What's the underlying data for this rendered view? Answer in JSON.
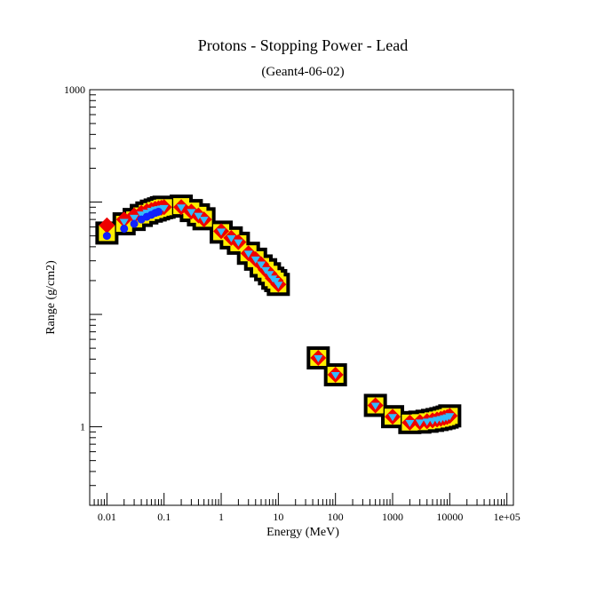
{
  "chart_data": {
    "type": "scatter",
    "title": "Protons - Stopping Power - Lead",
    "subtitle": "(Geant4-06-02)",
    "xlabel": "Energy (MeV)",
    "ylabel": "Range (g/cm2)",
    "x_scale": "log",
    "y_scale": "log",
    "xlim": [
      0.005,
      130000
    ],
    "ylim": [
      0.2,
      1000
    ],
    "grid": false,
    "x_ticks": [
      {
        "value": 0.01,
        "label": "0.01"
      },
      {
        "value": 0.1,
        "label": "0.1"
      },
      {
        "value": 1,
        "label": "1"
      },
      {
        "value": 10,
        "label": "10"
      },
      {
        "value": 100,
        "label": "100"
      },
      {
        "value": 1000,
        "label": "1000"
      },
      {
        "value": 10000,
        "label": "10000"
      },
      {
        "value": 100000,
        "label": "1e+05"
      }
    ],
    "y_ticks": [
      {
        "value": 1,
        "label": "1"
      },
      {
        "value": 1000,
        "label": "1000"
      }
    ],
    "series": [
      {
        "marker": "black-square",
        "color": "#000000",
        "x": [
          0.01,
          0.02,
          0.03,
          0.04,
          0.05,
          0.06,
          0.07,
          0.08,
          0.09,
          0.1,
          0.2,
          0.3,
          0.4,
          0.5,
          1,
          1.5,
          2,
          3,
          4,
          5,
          6,
          7,
          8,
          9,
          10,
          50,
          100,
          500,
          1000,
          2000,
          3000,
          4000,
          5000,
          6000,
          7000,
          8000,
          9000,
          10000
        ],
        "y": [
          53,
          64,
          70,
          76,
          80,
          83,
          85,
          87,
          89,
          90,
          92,
          84,
          77,
          71,
          54,
          48,
          43,
          35,
          31,
          27,
          25,
          23,
          21,
          20,
          18.5,
          4.1,
          2.9,
          1.55,
          1.23,
          1.09,
          1.1,
          1.12,
          1.14,
          1.16,
          1.18,
          1.2,
          1.22,
          1.25
        ]
      },
      {
        "marker": "yellow-square",
        "color": "#ffee00",
        "x": [
          0.01,
          0.02,
          0.03,
          0.04,
          0.05,
          0.06,
          0.07,
          0.08,
          0.09,
          0.1,
          0.2,
          0.3,
          0.4,
          0.5,
          1,
          1.5,
          2,
          3,
          4,
          5,
          6,
          7,
          8,
          9,
          10,
          50,
          100,
          500,
          1000,
          2000,
          3000,
          4000,
          5000,
          6000,
          7000,
          8000,
          9000,
          10000
        ],
        "y": [
          53,
          64,
          70,
          76,
          80,
          83,
          85,
          87,
          89,
          90,
          92,
          84,
          77,
          71,
          54,
          48,
          43,
          35,
          31,
          27,
          25,
          23,
          21,
          20,
          18.5,
          4.1,
          2.9,
          1.55,
          1.23,
          1.09,
          1.1,
          1.12,
          1.14,
          1.16,
          1.18,
          1.2,
          1.22,
          1.25
        ]
      },
      {
        "marker": "red-diamond",
        "color": "#ee0000",
        "x": [
          0.01,
          0.02,
          0.03,
          0.04,
          0.05,
          0.06,
          0.07,
          0.08,
          0.09,
          0.1,
          0.2,
          0.3,
          0.4,
          0.5,
          1,
          1.5,
          2,
          3,
          4,
          5,
          6,
          7,
          8,
          9,
          10,
          50,
          100,
          500,
          1000,
          2000,
          3000,
          4000,
          5000,
          6000,
          7000,
          8000,
          9000,
          10000
        ],
        "y": [
          62,
          70,
          76,
          80,
          83,
          85,
          87,
          88,
          89,
          90,
          90,
          82,
          76,
          70,
          55,
          48,
          44,
          35,
          31,
          28,
          25,
          23,
          21,
          20,
          18.5,
          4.1,
          2.9,
          1.55,
          1.23,
          1.09,
          1.1,
          1.12,
          1.14,
          1.16,
          1.18,
          1.2,
          1.22,
          1.25
        ]
      },
      {
        "marker": "cyan-triangle",
        "color": "#33bbff",
        "x": [
          0.02,
          0.03,
          0.04,
          0.05,
          0.06,
          0.07,
          0.08,
          0.09,
          0.1,
          0.2,
          0.3,
          0.4,
          0.5,
          1,
          1.5,
          2,
          3,
          4,
          5,
          6,
          7,
          8,
          9,
          10,
          50,
          100,
          500,
          1000,
          2000,
          3000,
          4000,
          5000,
          6000,
          7000,
          8000,
          9000,
          10000
        ],
        "y": [
          67,
          73,
          78,
          81,
          84,
          86,
          87,
          88,
          89,
          90,
          82,
          76,
          70,
          55,
          48,
          44,
          35,
          31,
          28,
          25,
          23,
          21,
          20,
          18.5,
          4.1,
          2.9,
          1.55,
          1.23,
          1.09,
          1.1,
          1.12,
          1.14,
          1.16,
          1.18,
          1.2,
          1.22,
          1.25
        ]
      },
      {
        "marker": "blue-circle",
        "color": "#1122ff",
        "x": [
          0.01,
          0.02,
          0.03,
          0.04,
          0.05,
          0.06,
          0.07,
          0.08
        ],
        "y": [
          50,
          58,
          64,
          70,
          74,
          77,
          80,
          82
        ]
      }
    ]
  }
}
